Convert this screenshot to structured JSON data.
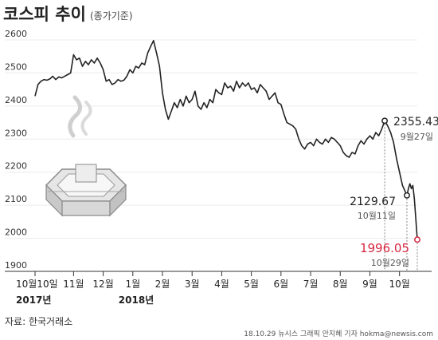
{
  "chart_data": {
    "type": "line",
    "title": "코스피 추이",
    "subtitle": "(종가기준)",
    "ylim": [
      1900,
      2600
    ],
    "yticks": [
      2600,
      2500,
      2400,
      2300,
      2200,
      2100,
      2000,
      1900
    ],
    "xlim": [
      0,
      12.9
    ],
    "months": [
      {
        "label": "10월10일",
        "x": 0
      },
      {
        "label": "11월",
        "x": 1.3
      },
      {
        "label": "12월",
        "x": 2.3
      },
      {
        "label": "1월",
        "x": 3.3
      },
      {
        "label": "2월",
        "x": 4.3
      },
      {
        "label": "3월",
        "x": 5.3
      },
      {
        "label": "4월",
        "x": 6.3
      },
      {
        "label": "5월",
        "x": 7.3
      },
      {
        "label": "6월",
        "x": 8.3
      },
      {
        "label": "7월",
        "x": 9.3
      },
      {
        "label": "8월",
        "x": 10.3
      },
      {
        "label": "9월",
        "x": 11.3
      },
      {
        "label": "10월",
        "x": 12.3
      }
    ],
    "years": [
      {
        "label": "2017년",
        "x": 0
      },
      {
        "label": "2018년",
        "x": 3.3
      }
    ],
    "series": [
      {
        "points": [
          [
            0.0,
            2430
          ],
          [
            0.1,
            2465
          ],
          [
            0.2,
            2475
          ],
          [
            0.3,
            2480
          ],
          [
            0.4,
            2478
          ],
          [
            0.5,
            2482
          ],
          [
            0.6,
            2490
          ],
          [
            0.7,
            2480
          ],
          [
            0.8,
            2488
          ],
          [
            0.9,
            2485
          ],
          [
            1.0,
            2490
          ],
          [
            1.1,
            2495
          ],
          [
            1.2,
            2500
          ],
          [
            1.3,
            2555
          ],
          [
            1.4,
            2540
          ],
          [
            1.5,
            2545
          ],
          [
            1.6,
            2520
          ],
          [
            1.7,
            2535
          ],
          [
            1.8,
            2525
          ],
          [
            1.9,
            2540
          ],
          [
            2.0,
            2530
          ],
          [
            2.1,
            2545
          ],
          [
            2.2,
            2530
          ],
          [
            2.3,
            2510
          ],
          [
            2.4,
            2475
          ],
          [
            2.5,
            2480
          ],
          [
            2.6,
            2465
          ],
          [
            2.7,
            2470
          ],
          [
            2.8,
            2480
          ],
          [
            2.9,
            2475
          ],
          [
            3.0,
            2478
          ],
          [
            3.1,
            2490
          ],
          [
            3.2,
            2510
          ],
          [
            3.3,
            2500
          ],
          [
            3.4,
            2520
          ],
          [
            3.5,
            2515
          ],
          [
            3.6,
            2530
          ],
          [
            3.7,
            2525
          ],
          [
            3.8,
            2560
          ],
          [
            3.9,
            2580
          ],
          [
            4.0,
            2598
          ],
          [
            4.1,
            2560
          ],
          [
            4.2,
            2520
          ],
          [
            4.3,
            2440
          ],
          [
            4.4,
            2390
          ],
          [
            4.5,
            2360
          ],
          [
            4.6,
            2385
          ],
          [
            4.7,
            2410
          ],
          [
            4.8,
            2395
          ],
          [
            4.9,
            2420
          ],
          [
            5.0,
            2400
          ],
          [
            5.1,
            2430
          ],
          [
            5.2,
            2410
          ],
          [
            5.3,
            2420
          ],
          [
            5.4,
            2445
          ],
          [
            5.5,
            2400
          ],
          [
            5.6,
            2390
          ],
          [
            5.7,
            2410
          ],
          [
            5.8,
            2395
          ],
          [
            5.9,
            2420
          ],
          [
            6.0,
            2410
          ],
          [
            6.1,
            2450
          ],
          [
            6.2,
            2440
          ],
          [
            6.3,
            2435
          ],
          [
            6.4,
            2470
          ],
          [
            6.5,
            2455
          ],
          [
            6.6,
            2460
          ],
          [
            6.7,
            2445
          ],
          [
            6.8,
            2475
          ],
          [
            6.9,
            2455
          ],
          [
            7.0,
            2470
          ],
          [
            7.1,
            2460
          ],
          [
            7.2,
            2470
          ],
          [
            7.3,
            2450
          ],
          [
            7.4,
            2455
          ],
          [
            7.5,
            2440
          ],
          [
            7.6,
            2465
          ],
          [
            7.7,
            2455
          ],
          [
            7.8,
            2445
          ],
          [
            7.9,
            2420
          ],
          [
            8.0,
            2430
          ],
          [
            8.1,
            2440
          ],
          [
            8.2,
            2410
          ],
          [
            8.3,
            2405
          ],
          [
            8.4,
            2375
          ],
          [
            8.5,
            2350
          ],
          [
            8.6,
            2345
          ],
          [
            8.7,
            2340
          ],
          [
            8.8,
            2330
          ],
          [
            8.9,
            2300
          ],
          [
            9.0,
            2280
          ],
          [
            9.1,
            2270
          ],
          [
            9.2,
            2285
          ],
          [
            9.3,
            2290
          ],
          [
            9.4,
            2280
          ],
          [
            9.5,
            2300
          ],
          [
            9.6,
            2290
          ],
          [
            9.7,
            2285
          ],
          [
            9.8,
            2300
          ],
          [
            9.9,
            2290
          ],
          [
            10.0,
            2305
          ],
          [
            10.1,
            2300
          ],
          [
            10.2,
            2290
          ],
          [
            10.3,
            2280
          ],
          [
            10.4,
            2260
          ],
          [
            10.5,
            2250
          ],
          [
            10.6,
            2245
          ],
          [
            10.7,
            2260
          ],
          [
            10.8,
            2255
          ],
          [
            10.9,
            2280
          ],
          [
            11.0,
            2295
          ],
          [
            11.1,
            2285
          ],
          [
            11.2,
            2300
          ],
          [
            11.3,
            2310
          ],
          [
            11.4,
            2300
          ],
          [
            11.5,
            2320
          ],
          [
            11.6,
            2310
          ],
          [
            11.7,
            2330
          ],
          [
            11.8,
            2355.43
          ],
          [
            11.9,
            2340
          ],
          [
            12.0,
            2320
          ],
          [
            12.1,
            2290
          ],
          [
            12.2,
            2240
          ],
          [
            12.3,
            2200
          ],
          [
            12.4,
            2160
          ],
          [
            12.5,
            2140
          ],
          [
            12.55,
            2129.67
          ],
          [
            12.6,
            2150
          ],
          [
            12.65,
            2165
          ],
          [
            12.7,
            2150
          ],
          [
            12.75,
            2160
          ],
          [
            12.8,
            2120
          ],
          [
            12.85,
            2060
          ],
          [
            12.9,
            1996.05
          ]
        ]
      }
    ],
    "annotations": [
      {
        "x": 11.8,
        "y": 2355.43,
        "value": "2355.43",
        "date": "9월27일"
      },
      {
        "x": 12.55,
        "y": 2129.67,
        "value": "2129.67",
        "date": "10월11일"
      },
      {
        "x": 12.9,
        "y": 1996.05,
        "value": "1996.05",
        "date": "10월29일",
        "highlight": true
      }
    ],
    "colors": {
      "line": "#222222",
      "highlight": "#d6263f"
    }
  },
  "source": "자료: 한국거래소",
  "credit": "18.10.29 뉴시스 그래픽 안지혜 기자 hokma@newsis.com",
  "illustration_icon": "smoking-stock-chart-icon"
}
